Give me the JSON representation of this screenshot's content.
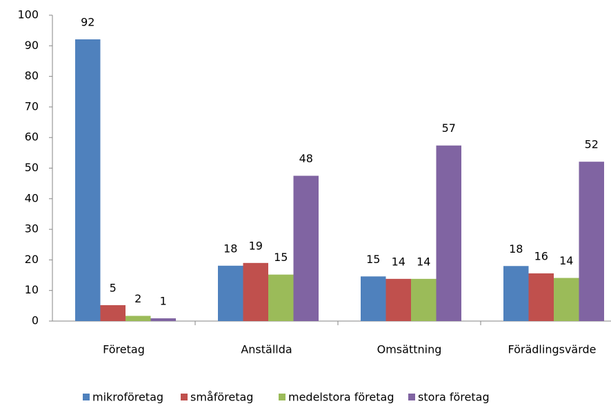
{
  "chart_data": {
    "type": "bar",
    "categories": [
      "Företag",
      "Anställda",
      "Omsättning",
      "Förädlingsvärde"
    ],
    "series": [
      {
        "name": "mikroföretag",
        "color": "#4f81bd",
        "values": [
          92.1,
          18.1,
          14.6,
          18.0
        ],
        "value_labels": [
          "92",
          "18",
          "15",
          "18"
        ]
      },
      {
        "name": "småföretag",
        "color": "#c0504d",
        "values": [
          5.2,
          19.0,
          13.8,
          15.6
        ],
        "value_labels": [
          "5",
          "19",
          "14",
          "16"
        ]
      },
      {
        "name": "medelstora företag",
        "color": "#9bbb59",
        "values": [
          1.7,
          15.2,
          13.8,
          14.1
        ],
        "value_labels": [
          "2",
          "15",
          "14",
          "14"
        ]
      },
      {
        "name": "stora företag",
        "color": "#8064a2",
        "values": [
          0.9,
          47.5,
          57.4,
          52.1
        ],
        "value_labels": [
          "1",
          "48",
          "57",
          "52"
        ]
      }
    ],
    "ylim": [
      0,
      100
    ],
    "yticks": [
      0,
      10,
      20,
      30,
      40,
      50,
      60,
      70,
      80,
      90,
      100
    ],
    "grid": false,
    "legend": "bottom"
  }
}
